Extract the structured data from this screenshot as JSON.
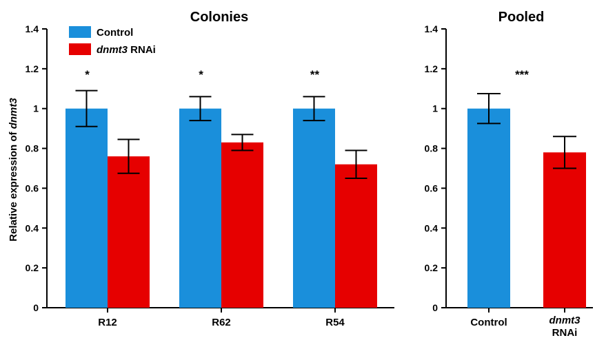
{
  "chart_data": [
    {
      "type": "bar",
      "title": "Colonies",
      "ylabel": "Relative expression of dnmt3",
      "ylabel_parts": [
        "Relative expression of ",
        "dnmt3"
      ],
      "ylim": [
        0,
        1.4
      ],
      "yticks": [
        "0",
        "0.2",
        "0.4",
        "0.6",
        "0.8",
        "1",
        "1.2",
        "1.4"
      ],
      "categories": [
        "R12",
        "R62",
        "R54"
      ],
      "series": [
        {
          "name": "Control",
          "color": "#1a8fdb",
          "values": [
            1.0,
            1.0,
            1.0
          ],
          "errors": [
            0.09,
            0.06,
            0.06
          ]
        },
        {
          "name": "dnmt3 RNAi",
          "name_parts": [
            "dnmt3",
            " RNAi"
          ],
          "color": "#e60000",
          "values": [
            0.76,
            0.83,
            0.72
          ],
          "errors": [
            0.085,
            0.04,
            0.07
          ]
        }
      ],
      "significance": [
        "*",
        "*",
        "**"
      ],
      "legend": "top-left",
      "grid": false
    },
    {
      "type": "bar",
      "title": "Pooled",
      "ylim": [
        0,
        1.4
      ],
      "yticks": [
        "0",
        "0.2",
        "0.4",
        "0.6",
        "0.8",
        "1",
        "1.2",
        "1.4"
      ],
      "categories": [
        "Control",
        "dnmt3 RNAi"
      ],
      "category_parts": [
        [
          "Control"
        ],
        [
          "dnmt3",
          "RNAi"
        ]
      ],
      "values": [
        1.0,
        0.78
      ],
      "errors": [
        0.075,
        0.08
      ],
      "colors": [
        "#1a8fdb",
        "#e60000"
      ],
      "significance": [
        "***"
      ],
      "grid": false
    }
  ]
}
